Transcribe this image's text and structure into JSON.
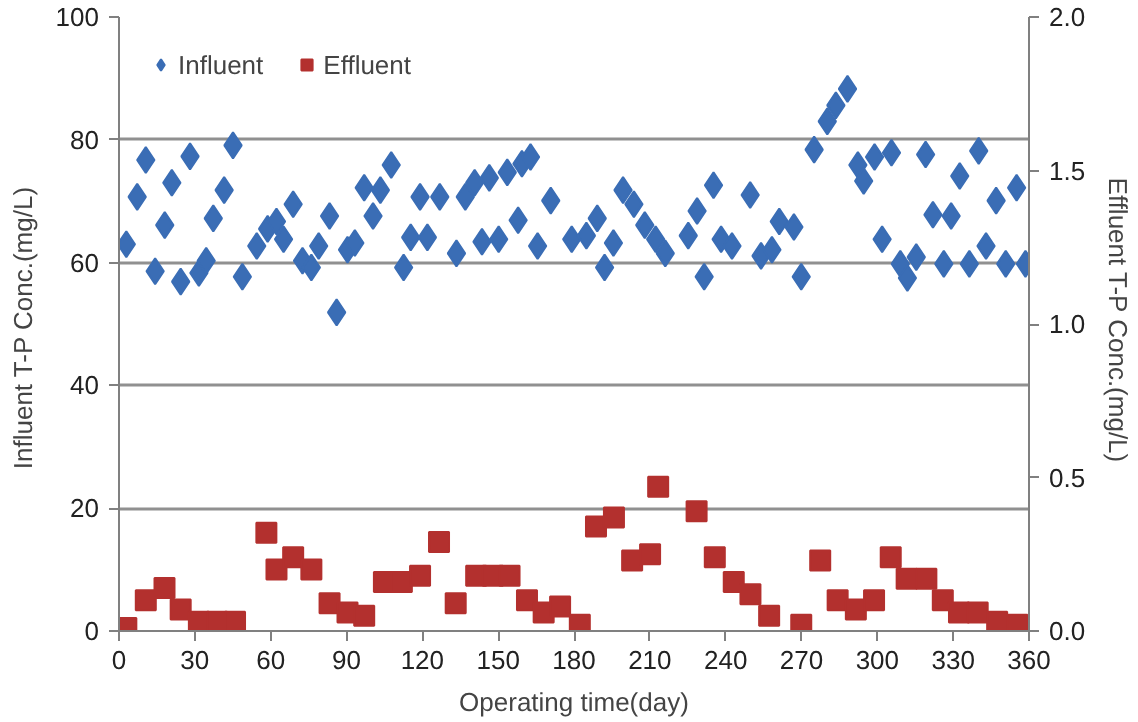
{
  "chart_data": {
    "type": "scatter",
    "xlabel": "Operating time(day)",
    "ylabel": "Influent  T-P Conc.(mg/L)",
    "y2label": "Effluent  T-P Conc.(mg/L)",
    "xlim": [
      0,
      360
    ],
    "xticks": [
      0,
      30,
      60,
      90,
      120,
      150,
      180,
      210,
      240,
      270,
      300,
      330,
      360
    ],
    "ylim": [
      0,
      100
    ],
    "yticks": [
      0,
      20,
      40,
      60,
      80,
      100
    ],
    "y2lim": [
      0,
      2.0
    ],
    "y2ticks": [
      {
        "value": 0,
        "label": "0.0"
      },
      {
        "value": 0.5,
        "label": "0.5"
      },
      {
        "value": 1.0,
        "label": "1.0"
      },
      {
        "value": 1.5,
        "label": "1.5"
      },
      {
        "value": 2.0,
        "label": "2.0"
      }
    ],
    "grid": "y",
    "legend": "top left",
    "series": [
      {
        "name": "Influent",
        "color": "#3a6db5",
        "marker": "diamond",
        "x": [
          2.9,
          7.2,
          10.6,
          14.3,
          18.1,
          20.9,
          24.4,
          28.1,
          31.6,
          34.5,
          37.3,
          41.6,
          45.1,
          48.8,
          54.5,
          58.8,
          62.3,
          65.1,
          68.9,
          72.6,
          76.1,
          79,
          83.3,
          86.1,
          90.4,
          93.3,
          97,
          100.5,
          103.4,
          107.7,
          112.6,
          115.4,
          119.1,
          122,
          126.9,
          133.5,
          137,
          140.7,
          143.6,
          146.5,
          150.2,
          153.6,
          157.9,
          159.4,
          162.8,
          165.6,
          170.8,
          179.1,
          184.9,
          189.2,
          192.1,
          195.6,
          199.4,
          203.7,
          208,
          212.3,
          216.1,
          225.2,
          228.7,
          231.5,
          235.2,
          238.2,
          242.5,
          249.7,
          254,
          258.3,
          261.2,
          267,
          269.9,
          275,
          280.2,
          283.6,
          288.2,
          292.3,
          294.6,
          298.9,
          301.9,
          305.6,
          309.1,
          311.9,
          315.4,
          319.1,
          322,
          326.3,
          329.2,
          332.6,
          336.4,
          340.1,
          343,
          347,
          350.8,
          355.1,
          358.6
        ],
        "values": [
          63.0,
          70.7,
          76.7,
          58.6,
          66.1,
          73.0,
          56.9,
          77.3,
          58.3,
          60.3,
          67.2,
          71.8,
          79.1,
          57.7,
          62.7,
          65.5,
          66.7,
          63.8,
          69.5,
          60.3,
          59.2,
          62.7,
          67.6,
          51.9,
          62.1,
          63.2,
          72.2,
          67.6,
          71.8,
          75.9,
          59.2,
          64.1,
          70.7,
          64.1,
          70.7,
          61.5,
          70.7,
          73.0,
          63.4,
          73.8,
          63.8,
          74.7,
          66.9,
          76.1,
          77.2,
          62.7,
          70.1,
          63.8,
          64.4,
          67.2,
          59.2,
          63.2,
          71.8,
          69.5,
          66.1,
          63.8,
          61.5,
          64.4,
          68.4,
          57.7,
          72.6,
          63.8,
          62.7,
          71.0,
          61.1,
          62.1,
          66.7,
          65.8,
          57.7,
          78.4,
          83.0,
          85.6,
          88.3,
          75.9,
          73.3,
          77.2,
          63.8,
          77.9,
          59.8,
          57.5,
          60.9,
          77.6,
          67.8,
          59.8,
          67.6,
          74.1,
          59.8,
          78.2,
          62.7,
          70.1,
          59.8,
          72.2,
          59.8
        ]
      },
      {
        "name": "Effluent",
        "color": "#b3302e",
        "marker": "square",
        "axis": "y2",
        "x": [
          2.9,
          10.6,
          18,
          24.4,
          31.6,
          38.8,
          45.9,
          58.3,
          62.3,
          68.9,
          76.1,
          83.3,
          90.4,
          97,
          104.8,
          111.9,
          119.1,
          126.6,
          133.2,
          141.3,
          147.9,
          154.5,
          161.4,
          168,
          174.5,
          182.3,
          188.7,
          195.8,
          203,
          210.1,
          213.3,
          228.5,
          235.7,
          243.2,
          249.8,
          257.2,
          269.9,
          277.4,
          284.3,
          291.5,
          298.7,
          305.3,
          311.6,
          319.4,
          325.9,
          332.3,
          339.7,
          347.4,
          355.4
        ],
        "values": [
          0.01,
          0.1,
          0.14,
          0.07,
          0.03,
          0.03,
          0.03,
          0.32,
          0.2,
          0.24,
          0.2,
          0.09,
          0.06,
          0.05,
          0.16,
          0.16,
          0.18,
          0.29,
          0.09,
          0.18,
          0.18,
          0.18,
          0.1,
          0.06,
          0.08,
          0.02,
          0.34,
          0.37,
          0.23,
          0.25,
          0.47,
          0.39,
          0.24,
          0.16,
          0.12,
          0.05,
          0.02,
          0.23,
          0.1,
          0.07,
          0.1,
          0.24,
          0.17,
          0.17,
          0.1,
          0.06,
          0.06,
          0.03,
          0.02
        ]
      }
    ]
  }
}
